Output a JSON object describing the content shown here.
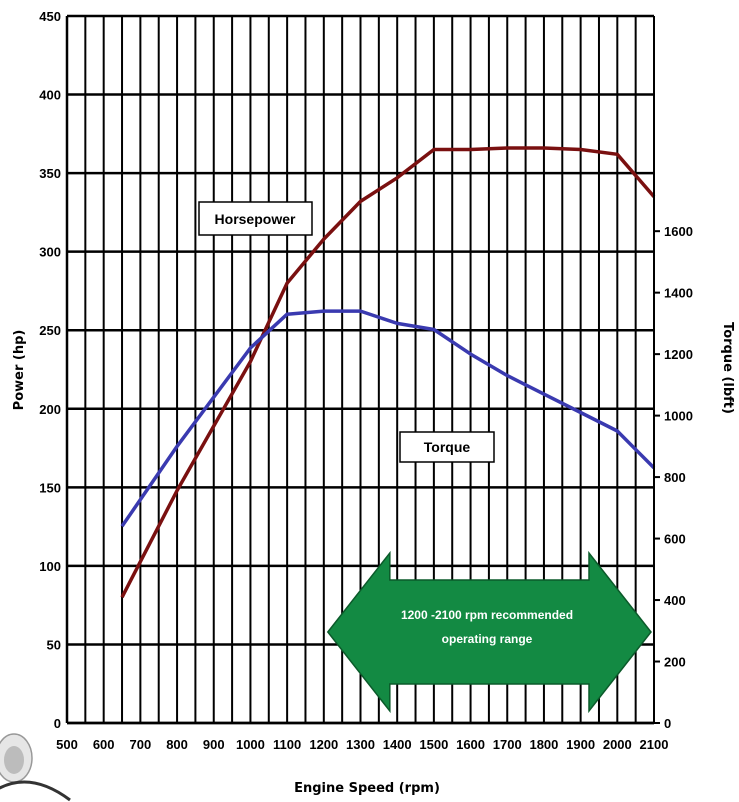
{
  "chart_data": {
    "type": "line",
    "xlabel": "Engine Speed (rpm)",
    "ylabel": "Power (hp)",
    "y2label": "Torque (lbft)",
    "xlim": [
      500,
      2100
    ],
    "ylim": [
      0,
      450
    ],
    "y2lim": [
      0,
      2300
    ],
    "x_ticks": [
      500,
      600,
      700,
      800,
      900,
      1000,
      1100,
      1200,
      1300,
      1400,
      1500,
      1600,
      1700,
      1800,
      1900,
      2000,
      2100
    ],
    "y_ticks": [
      0,
      50,
      100,
      150,
      200,
      250,
      300,
      350,
      400,
      450
    ],
    "y2_ticks": [
      0,
      200,
      400,
      600,
      800,
      1000,
      1200,
      1400,
      1600
    ],
    "grid": true,
    "series": [
      {
        "name": "Horsepower",
        "axis": "left",
        "color": "#7a1010",
        "x": [
          650,
          800,
          1000,
          1100,
          1200,
          1300,
          1400,
          1500,
          1600,
          1700,
          1800,
          1900,
          2000,
          2100
        ],
        "y": [
          80,
          148,
          230,
          280,
          308,
          332,
          347,
          365,
          365,
          366,
          366,
          365,
          362,
          335
        ]
      },
      {
        "name": "Torque",
        "axis": "right",
        "color": "#3a3ab0",
        "x": [
          650,
          800,
          1000,
          1100,
          1200,
          1300,
          1400,
          1500,
          1600,
          1700,
          1800,
          1900,
          2000,
          2100
        ],
        "y": [
          640,
          900,
          1220,
          1330,
          1340,
          1340,
          1300,
          1280,
          1200,
          1130,
          1070,
          1010,
          950,
          830
        ]
      }
    ],
    "annotations": {
      "arrow_text": [
        "1200 -2100 rpm recommended",
        "operating range"
      ],
      "arrow_range": [
        1200,
        2100
      ],
      "arrow_color": "#138a43"
    }
  }
}
